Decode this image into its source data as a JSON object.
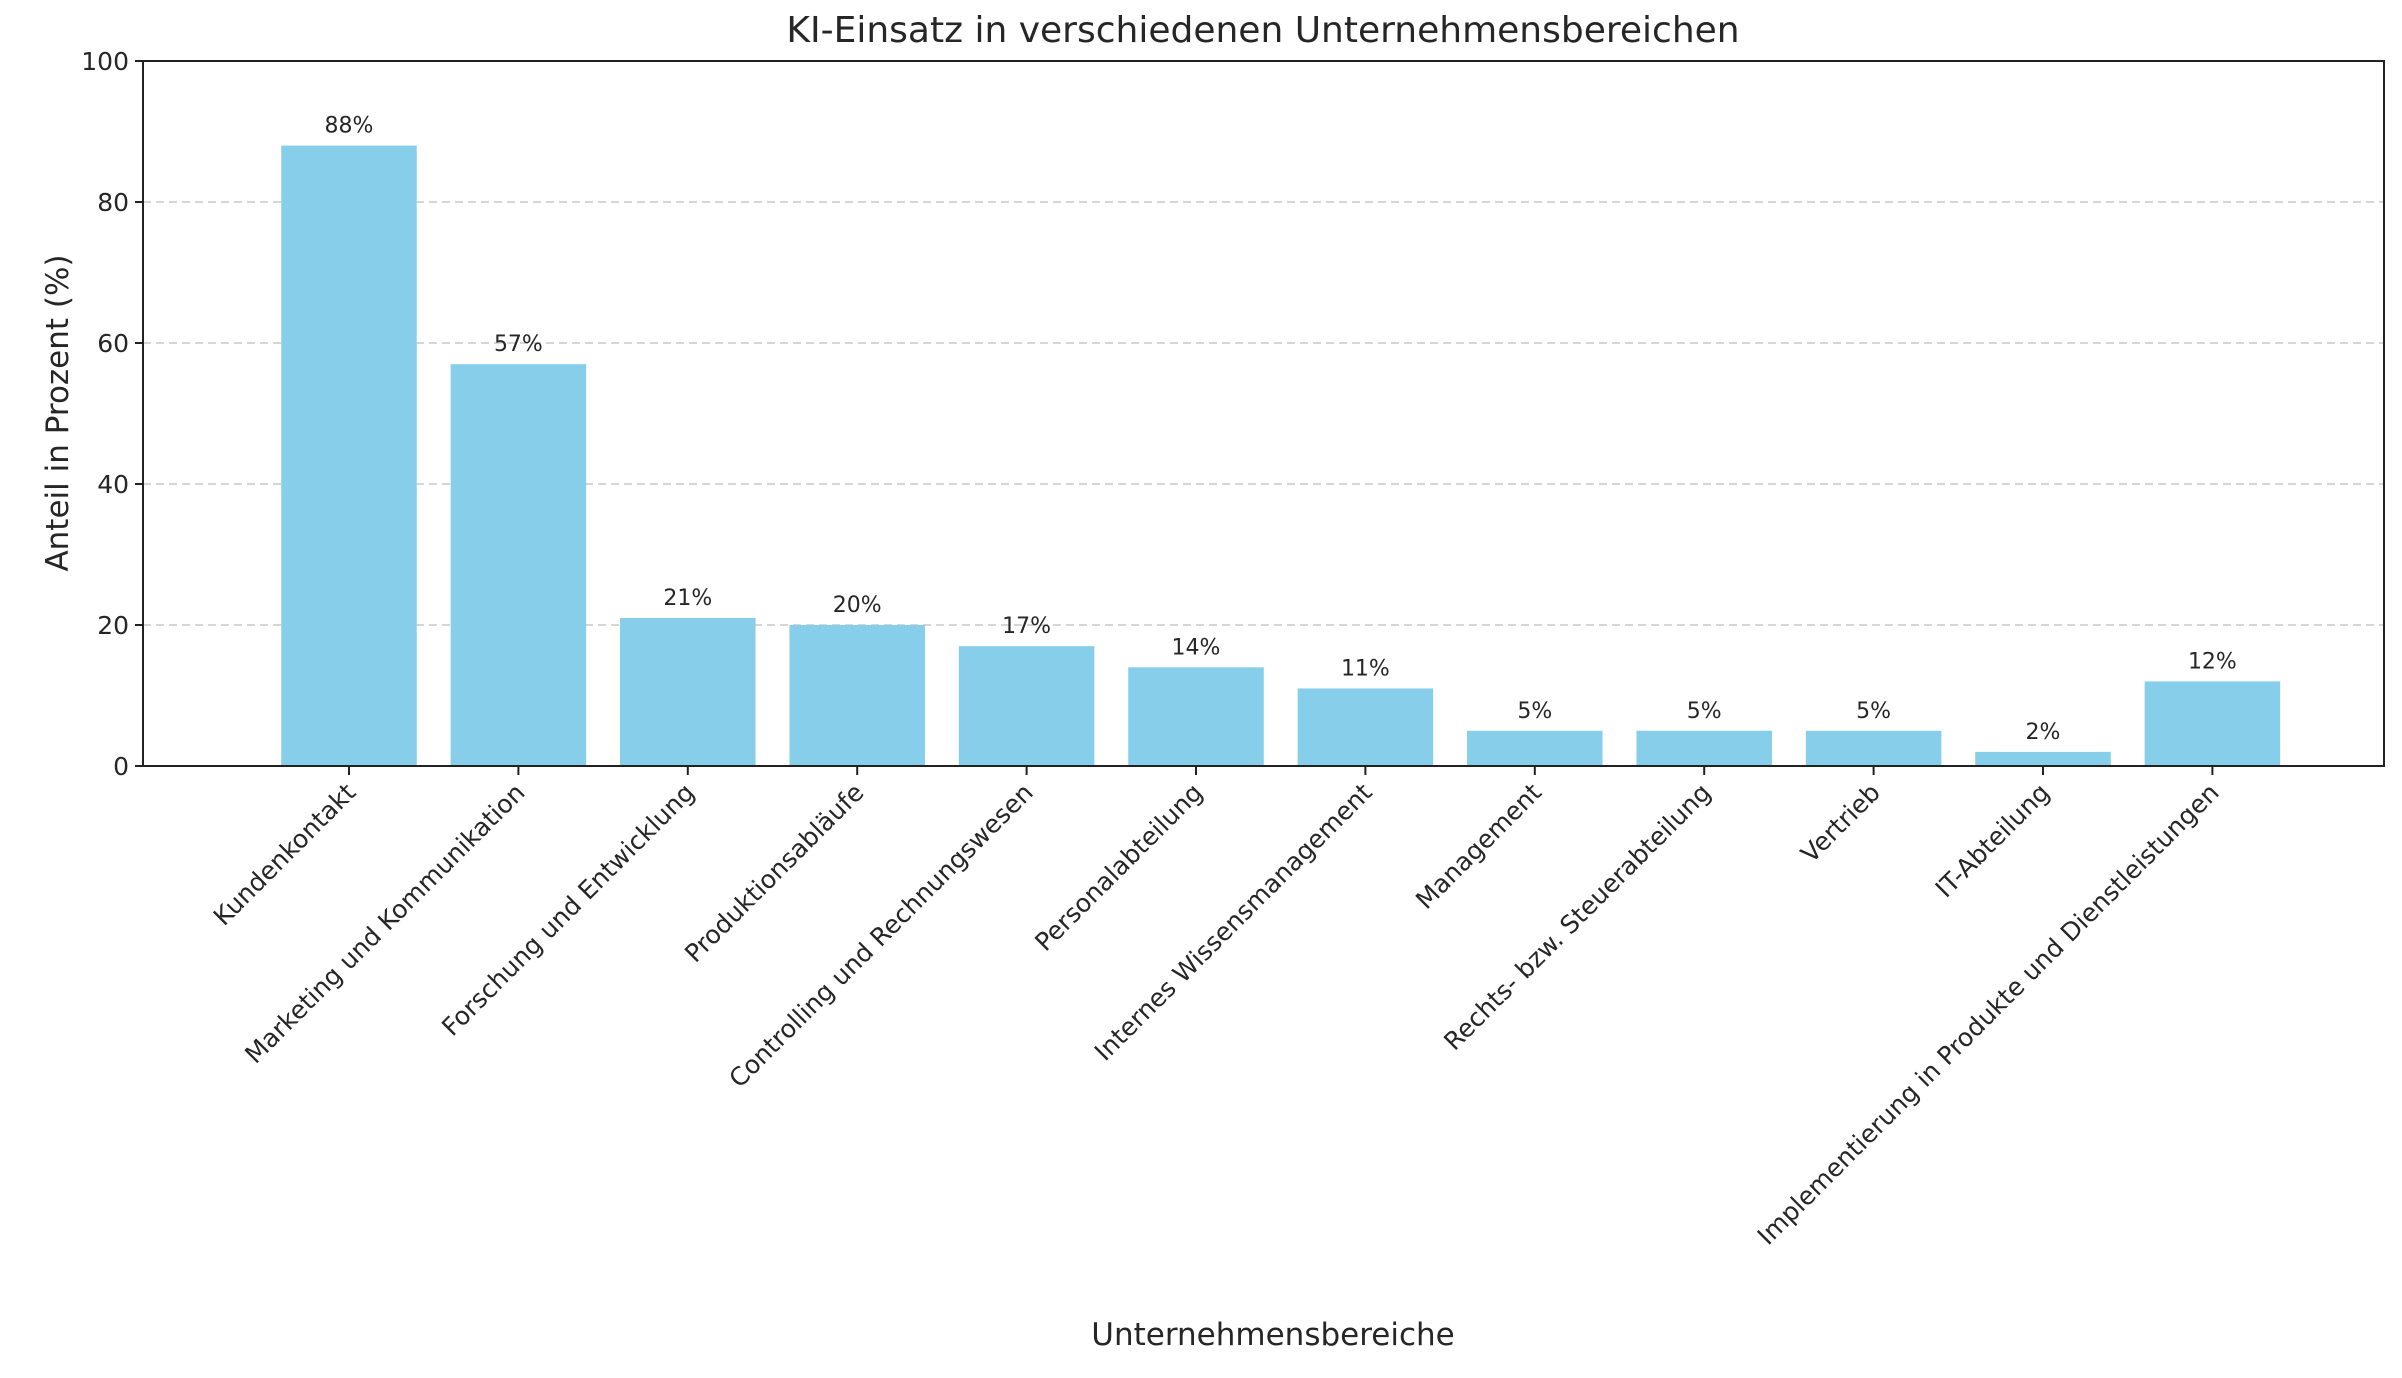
{
  "chart_data": {
    "type": "bar",
    "title": "KI-Einsatz in verschiedenen Unternehmensbereichen",
    "xlabel": "Unternehmensbereiche",
    "ylabel": "Anteil in Prozent (%)",
    "ylim": [
      0,
      100
    ],
    "yticks": [
      0,
      20,
      40,
      60,
      80,
      100
    ],
    "grid": "y-dashed",
    "bar_color": "#87CEEB",
    "categories": [
      "Kundenkontakt",
      "Marketing und Kommunikation",
      "Forschung und Entwicklung",
      "Produktionsabläufe",
      "Controlling und Rechnungswesen",
      "Personalabteilung",
      "Internes Wissensmanagement",
      "Management",
      "Rechts- bzw. Steuerabteilung",
      "Vertrieb",
      "IT-Abteilung",
      "Implementierung in Produkte und Dienstleistungen"
    ],
    "values": [
      88,
      57,
      21,
      20,
      17,
      14,
      11,
      5,
      5,
      5,
      2,
      12
    ],
    "value_labels": [
      "88%",
      "57%",
      "21%",
      "20%",
      "17%",
      "14%",
      "11%",
      "5%",
      "5%",
      "5%",
      "2%",
      "12%"
    ]
  }
}
